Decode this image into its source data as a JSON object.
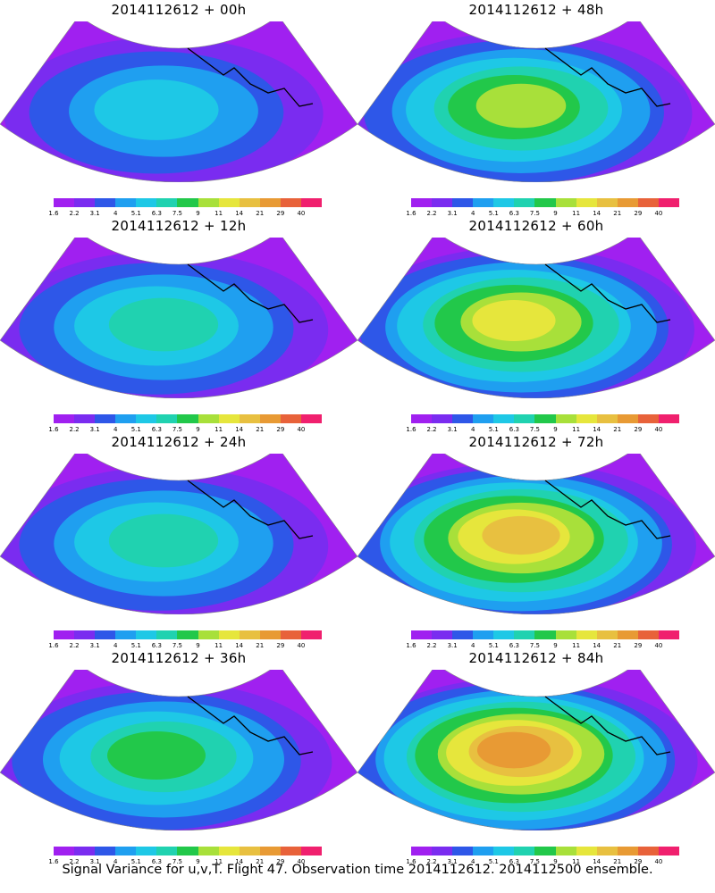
{
  "panels": [
    {
      "title": "2014112612 + 00h",
      "level": 0.3
    },
    {
      "title": "2014112612 + 48h",
      "level": 0.6
    },
    {
      "title": "2014112612 + 12h",
      "level": 0.38
    },
    {
      "title": "2014112612 + 60h",
      "level": 0.68
    },
    {
      "title": "2014112612 + 24h",
      "level": 0.45
    },
    {
      "title": "2014112612 + 72h",
      "level": 0.76
    },
    {
      "title": "2014112612 + 36h",
      "level": 0.52
    },
    {
      "title": "2014112612 + 84h",
      "level": 0.84
    }
  ],
  "colorbar": {
    "ticks": [
      "1.6",
      "2.2",
      "3.1",
      "4",
      "5.1",
      "6.3",
      "7.5",
      "9",
      "11",
      "14",
      "21",
      "29",
      "40"
    ],
    "colors": [
      "#a020f0",
      "#7a2cf0",
      "#2e57e8",
      "#1f9ff0",
      "#1ec8e6",
      "#20d2b0",
      "#22c84a",
      "#a8e03a",
      "#e6e63c",
      "#e8c040",
      "#e89a34",
      "#e8623a",
      "#f0206e"
    ]
  },
  "footer": "Signal Variance for u,v,T. Flight 47. Observation time 2014112612. 2014112500 ensemble."
}
